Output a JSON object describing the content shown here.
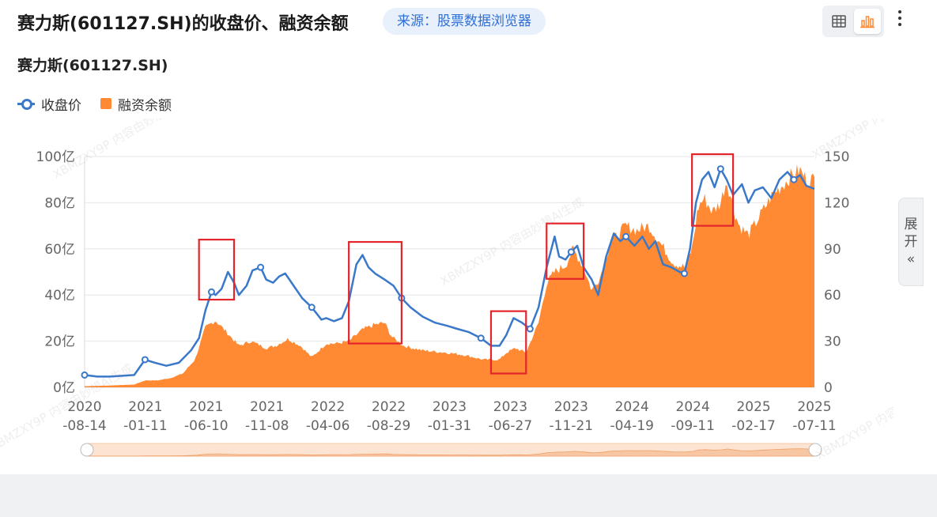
{
  "header": {
    "title": "赛力斯(601127.SH)的收盘价、融资余额",
    "source": "来源：股票数据浏览器"
  },
  "toolbar": {
    "table_icon": "table-icon",
    "chart_icon": "bar-chart-icon",
    "more_icon": "more-vertical-icon"
  },
  "expand": {
    "line1": "展",
    "line2": "开",
    "arrows": "«"
  },
  "chart_data": {
    "type": "bar+line",
    "title": "赛力斯(601127.SH)",
    "legend_position": "top-left",
    "grid": true,
    "x_tick_labels": [
      [
        "2020",
        "-08-14"
      ],
      [
        "2021",
        "-01-11"
      ],
      [
        "2021",
        "-06-10"
      ],
      [
        "2021",
        "-11-08"
      ],
      [
        "2022",
        "-04-06"
      ],
      [
        "2022",
        "-08-29"
      ],
      [
        "2023",
        "-01-31"
      ],
      [
        "2023",
        "-06-27"
      ],
      [
        "2023",
        "-11-21"
      ],
      [
        "2024",
        "-04-19"
      ],
      [
        "2024",
        "-09-11"
      ],
      [
        "2025",
        "-02-17"
      ],
      [
        "2025",
        "-07-11"
      ]
    ],
    "y_left": {
      "ticks": [
        "0亿",
        "20亿",
        "40亿",
        "60亿",
        "80亿",
        "100亿"
      ],
      "range": [
        0,
        100
      ]
    },
    "y_right": {
      "ticks": [
        "0",
        "30",
        "60",
        "90",
        "120",
        "150"
      ],
      "range": [
        0,
        150
      ]
    },
    "series": [
      {
        "name": "收盘价",
        "type": "line",
        "axis": "right",
        "color": "#3a78c9",
        "points": [
          [
            "2020-08-14",
            8
          ],
          [
            "2020-09-15",
            7
          ],
          [
            "2020-10-15",
            7
          ],
          [
            "2020-11-15",
            7.5
          ],
          [
            "2020-12-15",
            8
          ],
          [
            "2021-01-11",
            18
          ],
          [
            "2021-02-05",
            16
          ],
          [
            "2021-03-05",
            14
          ],
          [
            "2021-04-05",
            16
          ],
          [
            "2021-05-05",
            24
          ],
          [
            "2021-05-25",
            32
          ],
          [
            "2021-06-10",
            50
          ],
          [
            "2021-06-25",
            62
          ],
          [
            "2021-07-05",
            60
          ],
          [
            "2021-07-20",
            64
          ],
          [
            "2021-08-05",
            75
          ],
          [
            "2021-08-20",
            68
          ],
          [
            "2021-09-01",
            60
          ],
          [
            "2021-09-20",
            66
          ],
          [
            "2021-10-05",
            76
          ],
          [
            "2021-10-25",
            78
          ],
          [
            "2021-11-08",
            70
          ],
          [
            "2021-11-25",
            68
          ],
          [
            "2021-12-10",
            72
          ],
          [
            "2021-12-25",
            74
          ],
          [
            "2022-01-15",
            66
          ],
          [
            "2022-02-05",
            58
          ],
          [
            "2022-03-01",
            52
          ],
          [
            "2022-03-25",
            44
          ],
          [
            "2022-04-06",
            45
          ],
          [
            "2022-04-25",
            43
          ],
          [
            "2022-05-15",
            45
          ],
          [
            "2022-06-01",
            56
          ],
          [
            "2022-06-20",
            80
          ],
          [
            "2022-07-05",
            86
          ],
          [
            "2022-07-20",
            78
          ],
          [
            "2022-08-05",
            74
          ],
          [
            "2022-08-29",
            70
          ],
          [
            "2022-09-20",
            66
          ],
          [
            "2022-10-10",
            58
          ],
          [
            "2022-11-01",
            52
          ],
          [
            "2022-12-01",
            46
          ],
          [
            "2023-01-01",
            42
          ],
          [
            "2023-01-31",
            40
          ],
          [
            "2023-02-25",
            38
          ],
          [
            "2023-03-25",
            36
          ],
          [
            "2023-04-25",
            32
          ],
          [
            "2023-05-20",
            27
          ],
          [
            "2023-06-10",
            27
          ],
          [
            "2023-06-27",
            34
          ],
          [
            "2023-07-15",
            45
          ],
          [
            "2023-08-05",
            42
          ],
          [
            "2023-08-25",
            38
          ],
          [
            "2023-09-15",
            52
          ],
          [
            "2023-10-05",
            78
          ],
          [
            "2023-10-25",
            98
          ],
          [
            "2023-11-05",
            85
          ],
          [
            "2023-11-21",
            83
          ],
          [
            "2023-12-05",
            88
          ],
          [
            "2023-12-20",
            92
          ],
          [
            "2024-01-05",
            78
          ],
          [
            "2024-01-25",
            70
          ],
          [
            "2024-02-10",
            60
          ],
          [
            "2024-03-01",
            85
          ],
          [
            "2024-03-20",
            100
          ],
          [
            "2024-04-05",
            95
          ],
          [
            "2024-04-19",
            98
          ],
          [
            "2024-05-10",
            92
          ],
          [
            "2024-05-30",
            98
          ],
          [
            "2024-06-15",
            90
          ],
          [
            "2024-07-01",
            95
          ],
          [
            "2024-07-20",
            80
          ],
          [
            "2024-08-10",
            78
          ],
          [
            "2024-08-30",
            75
          ],
          [
            "2024-09-11",
            74
          ],
          [
            "2024-09-25",
            90
          ],
          [
            "2024-10-10",
            120
          ],
          [
            "2024-10-25",
            135
          ],
          [
            "2024-11-10",
            140
          ],
          [
            "2024-11-25",
            130
          ],
          [
            "2024-12-10",
            142
          ],
          [
            "2024-12-25",
            135
          ],
          [
            "2025-01-10",
            125
          ],
          [
            "2025-02-01",
            132
          ],
          [
            "2025-02-17",
            120
          ],
          [
            "2025-03-05",
            128
          ],
          [
            "2025-03-25",
            130
          ],
          [
            "2025-04-15",
            123
          ],
          [
            "2025-05-05",
            135
          ],
          [
            "2025-05-25",
            140
          ],
          [
            "2025-06-10",
            135
          ],
          [
            "2025-06-25",
            138
          ],
          [
            "2025-07-11",
            131
          ],
          [
            "2025-07-31",
            129
          ]
        ]
      },
      {
        "name": "融资余额",
        "type": "area",
        "axis": "left",
        "color": "#ff8a33",
        "points": [
          [
            "2020-08-14",
            0.5
          ],
          [
            "2020-10-15",
            0.8
          ],
          [
            "2020-12-15",
            1.2
          ],
          [
            "2021-01-11",
            3
          ],
          [
            "2021-02-10",
            3
          ],
          [
            "2021-03-15",
            4
          ],
          [
            "2021-04-15",
            6
          ],
          [
            "2021-05-15",
            12
          ],
          [
            "2021-06-10",
            26
          ],
          [
            "2021-07-05",
            29
          ],
          [
            "2021-08-01",
            24
          ],
          [
            "2021-09-01",
            18
          ],
          [
            "2021-10-01",
            20
          ],
          [
            "2021-11-08",
            17
          ],
          [
            "2021-12-01",
            18
          ],
          [
            "2022-01-01",
            21
          ],
          [
            "2022-02-01",
            18
          ],
          [
            "2022-03-01",
            13
          ],
          [
            "2022-04-06",
            19
          ],
          [
            "2022-05-01",
            19
          ],
          [
            "2022-06-01",
            20
          ],
          [
            "2022-07-05",
            25
          ],
          [
            "2022-08-01",
            27
          ],
          [
            "2022-08-29",
            28
          ],
          [
            "2022-09-15",
            22
          ],
          [
            "2022-10-15",
            18
          ],
          [
            "2022-12-01",
            16
          ],
          [
            "2023-01-31",
            15
          ],
          [
            "2023-03-15",
            14
          ],
          [
            "2023-05-01",
            12
          ],
          [
            "2023-06-10",
            12
          ],
          [
            "2023-06-27",
            15
          ],
          [
            "2023-07-20",
            17
          ],
          [
            "2023-08-15",
            15
          ],
          [
            "2023-09-15",
            28
          ],
          [
            "2023-10-05",
            45
          ],
          [
            "2023-10-25",
            50
          ],
          [
            "2023-11-21",
            53
          ],
          [
            "2023-12-10",
            60
          ],
          [
            "2024-01-05",
            52
          ],
          [
            "2024-01-25",
            42
          ],
          [
            "2024-02-15",
            48
          ],
          [
            "2024-03-10",
            62
          ],
          [
            "2024-04-19",
            70
          ],
          [
            "2024-05-15",
            68
          ],
          [
            "2024-06-15",
            70
          ],
          [
            "2024-07-15",
            62
          ],
          [
            "2024-08-15",
            54
          ],
          [
            "2024-09-11",
            52
          ],
          [
            "2024-09-30",
            60
          ],
          [
            "2024-10-15",
            78
          ],
          [
            "2024-10-30",
            82
          ],
          [
            "2024-11-20",
            76
          ],
          [
            "2024-12-10",
            80
          ],
          [
            "2024-12-25",
            90
          ],
          [
            "2025-01-10",
            78
          ],
          [
            "2025-01-25",
            70
          ],
          [
            "2025-02-17",
            66
          ],
          [
            "2025-03-10",
            72
          ],
          [
            "2025-03-30",
            78
          ],
          [
            "2025-04-20",
            84
          ],
          [
            "2025-05-15",
            88
          ],
          [
            "2025-06-05",
            92
          ],
          [
            "2025-06-25",
            94
          ],
          [
            "2025-07-11",
            90
          ],
          [
            "2025-07-31",
            90
          ]
        ]
      }
    ],
    "highlight_boxes": [
      {
        "from": "2021-05-25",
        "to": "2021-08-20",
        "low_yi": 38,
        "high_yi": 64
      },
      {
        "from": "2022-06-01",
        "to": "2022-10-10",
        "low_yi": 19,
        "high_yi": 63
      },
      {
        "from": "2023-05-20",
        "to": "2023-08-15",
        "low_yi": 6,
        "high_yi": 33
      },
      {
        "from": "2023-10-05",
        "to": "2024-01-05",
        "low_yi": 47,
        "high_yi": 71
      },
      {
        "from": "2024-09-30",
        "to": "2025-01-10",
        "low_yi": 70,
        "high_yi": 101
      }
    ],
    "highlight_color": "#e3252b",
    "slider": {
      "start": 0,
      "end": 1
    }
  },
  "watermark": "XBMZXY9P 内容由妙想AI生成"
}
